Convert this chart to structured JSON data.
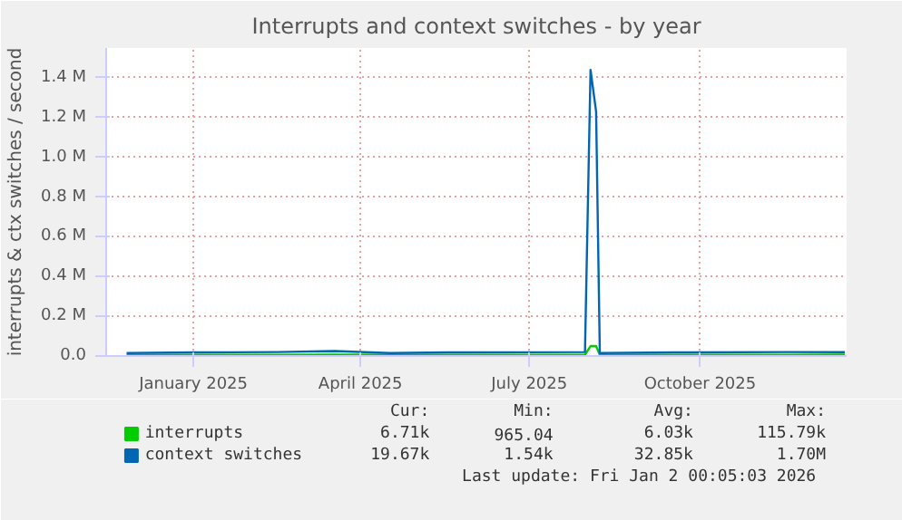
{
  "chart_data": {
    "type": "line",
    "title": "Interrupts and context switches - by year",
    "ylabel": "interrupts & ctx switches / second",
    "x": [
      "2024-12-10",
      "2025-01-15",
      "2025-03-01",
      "2025-04-01",
      "2025-05-01",
      "2025-06-01",
      "2025-08-14",
      "2025-08-17",
      "2025-08-20",
      "2025-08-22",
      "2025-10-01",
      "2025-12-01",
      "2026-01-01"
    ],
    "series": [
      {
        "name": "interrupts",
        "color": "#00cc00",
        "values": [
          5000,
          6000,
          6000,
          7000,
          6000,
          6000,
          6000,
          50000,
          50000,
          6000,
          6000,
          6000,
          6710
        ]
      },
      {
        "name": "context switches",
        "color": "#0066b3",
        "values": [
          15000,
          18000,
          20000,
          25000,
          15000,
          18000,
          20000,
          1440000,
          1230000,
          15000,
          18000,
          20000,
          19670
        ]
      }
    ],
    "xlim": [
      "2024-11-29",
      "2026-01-02"
    ],
    "xticks": [
      {
        "value": "2025-01-15",
        "label": "January 2025"
      },
      {
        "value": "2025-04-15",
        "label": "April 2025"
      },
      {
        "value": "2025-07-15",
        "label": "July 2025"
      },
      {
        "value": "2025-10-15",
        "label": "October 2025"
      }
    ],
    "ylim": [
      0,
      1550000
    ],
    "yticks": [
      {
        "value": 0,
        "label": "0.0"
      },
      {
        "value": 200000,
        "label": "0.2 M"
      },
      {
        "value": 400000,
        "label": "0.4 M"
      },
      {
        "value": 600000,
        "label": "0.6 M"
      },
      {
        "value": 800000,
        "label": "0.8 M"
      },
      {
        "value": 1000000,
        "label": "1.0 M"
      },
      {
        "value": 1200000,
        "label": "1.2 M"
      },
      {
        "value": 1400000,
        "label": "1.4 M"
      }
    ],
    "grid": true,
    "legend": "bottom left",
    "annotations": [
      "Cur:",
      "Min:",
      "Avg:",
      "Max:",
      "6.71k",
      "965.04",
      "6.03k",
      "115.79k",
      "19.67k",
      "1.54k",
      "32.85k",
      "1.70M",
      "Last update: Fri Jan  2 00:05:03 2026"
    ]
  }
}
